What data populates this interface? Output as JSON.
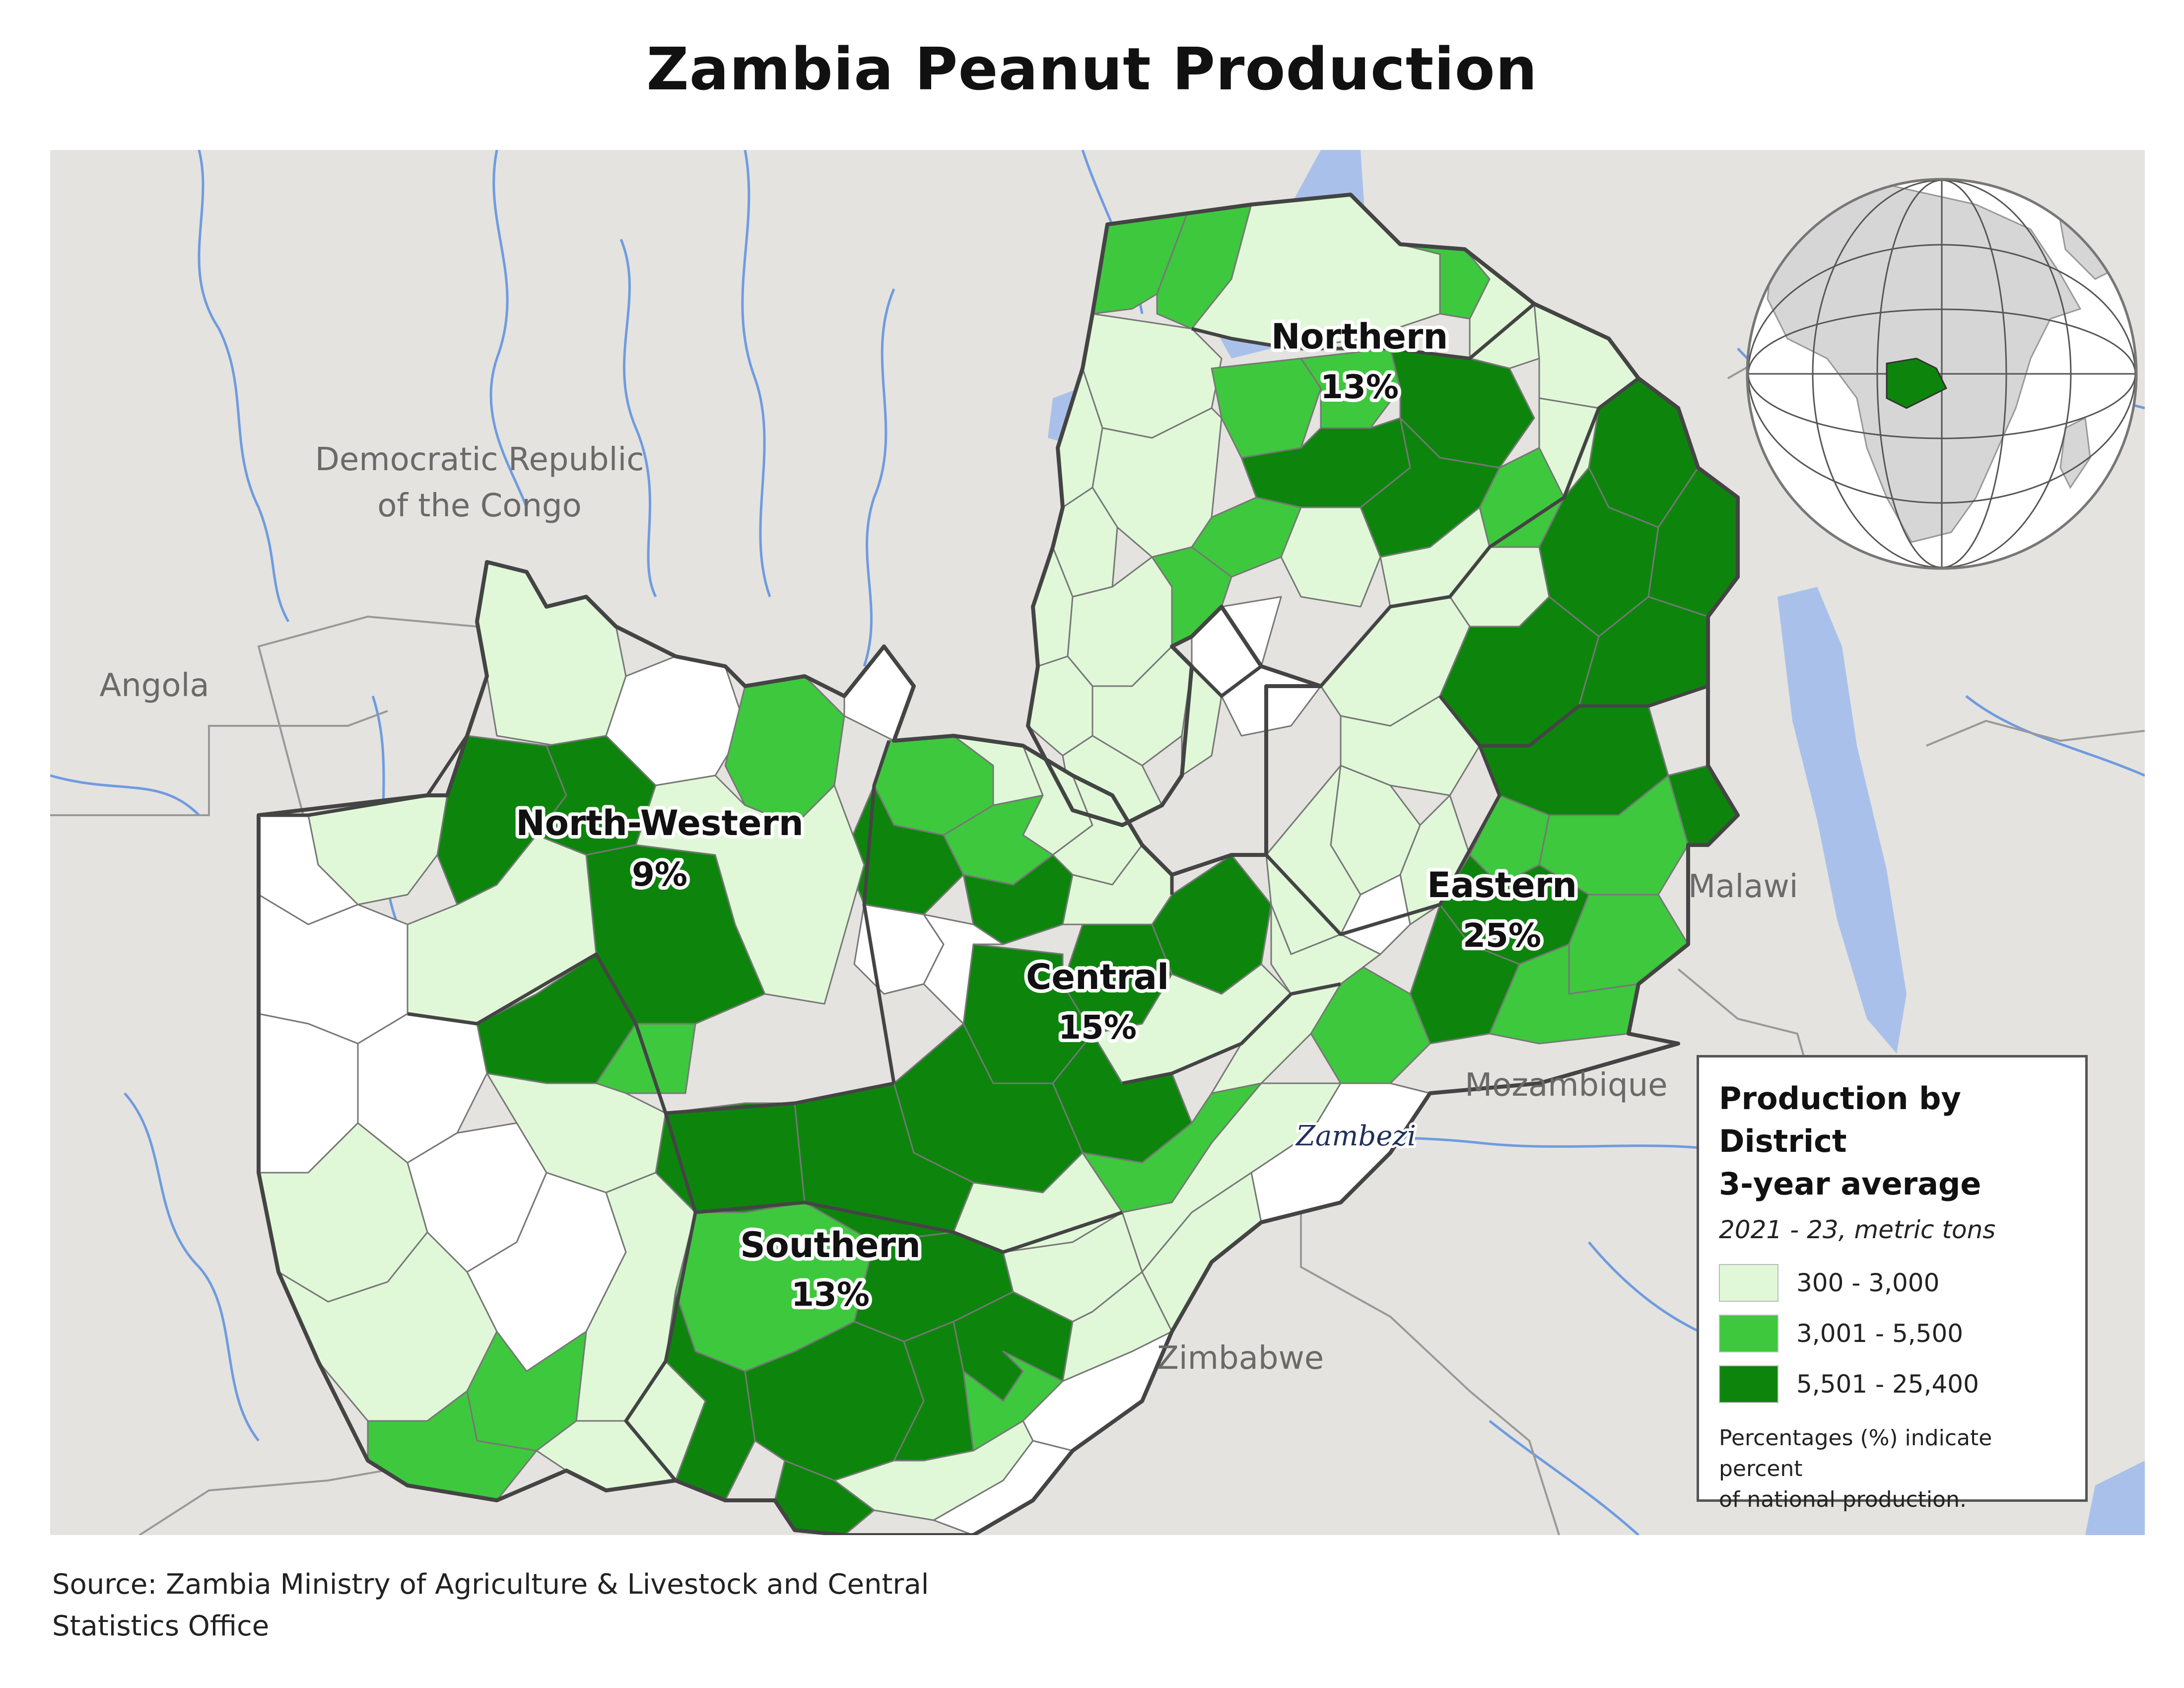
{
  "title": "Zambia Peanut Production",
  "colors": {
    "ocean_land_bg": "#e4e3df",
    "water": "#a9c1ea",
    "no_data": "#ffffff",
    "class_low": "#e0f8d8",
    "class_mid": "#3ec83e",
    "class_high": "#0d850d",
    "province_border": "#444444",
    "district_border": "#777777"
  },
  "countries": {
    "drc": "Democratic Republic",
    "drc_line2": "of the Congo",
    "angola": "Angola",
    "malawi": "Malawi",
    "mozambique": "Mozambique",
    "zimbabwe": "Zimbabwe"
  },
  "river": "Zambezi",
  "provinces": [
    {
      "name": "Northern",
      "percent": "13%"
    },
    {
      "name": "North-Western",
      "percent": "9%"
    },
    {
      "name": "Central",
      "percent": "15%"
    },
    {
      "name": "Eastern",
      "percent": "25%"
    },
    {
      "name": "Southern",
      "percent": "13%"
    }
  ],
  "legend": {
    "title_line1": "Production by District",
    "title_line2": "3-year average",
    "subtitle": "2021 - 23, metric tons",
    "classes": [
      {
        "label": "300 - 3,000",
        "color": "#e0f8d8"
      },
      {
        "label": "3,001 - 5,500",
        "color": "#3ec83e"
      },
      {
        "label": "5,501 - 25,400",
        "color": "#0d850d"
      }
    ],
    "note_line1": "Percentages (%) indicate percent",
    "note_line2": "of national production."
  },
  "source_line1": "Source: Zambia Ministry of Agriculture & Livestock and Central",
  "source_line2": "Statistics Office"
}
